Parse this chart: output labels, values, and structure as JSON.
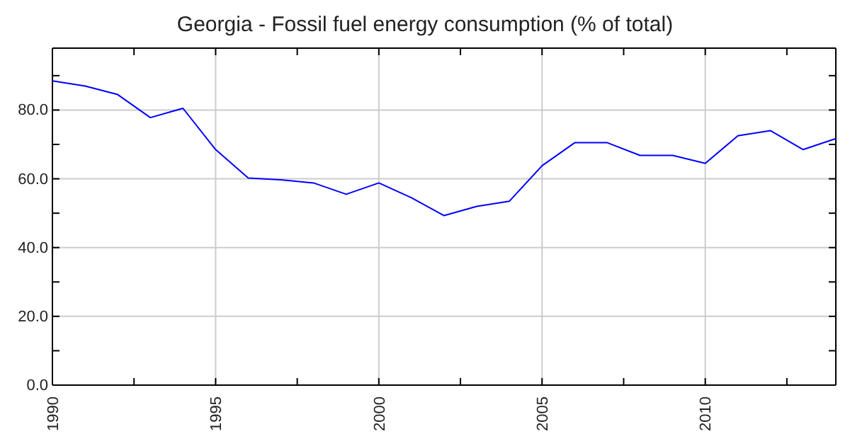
{
  "chart_data": {
    "type": "line",
    "title": "Georgia - Fossil fuel energy consumption (% of total)",
    "x": [
      1990,
      1991,
      1992,
      1993,
      1994,
      1995,
      1996,
      1997,
      1998,
      1999,
      2000,
      2001,
      2002,
      2003,
      2004,
      2005,
      2006,
      2007,
      2008,
      2009,
      2010,
      2011,
      2012,
      2013,
      2014
    ],
    "series": [
      {
        "color": "#0000ff",
        "values": [
          88.5,
          87,
          84.5,
          77.8,
          80.5,
          68.5,
          60.2,
          59.7,
          58.8,
          55.5,
          58.8,
          54.5,
          49.3,
          52,
          53.5,
          63.8,
          70.5,
          70.5,
          66.8,
          66.8,
          64.5,
          72.5,
          74,
          68.5,
          71.7
        ]
      }
    ],
    "xlim": [
      1990,
      2014
    ],
    "xticks": [
      1990,
      {
        "value": 1992.5,
        "label": null
      },
      1995,
      {
        "value": 1997.5,
        "label": null
      },
      2000,
      {
        "value": 2002.5,
        "label": null
      },
      2005,
      {
        "value": 2007.5,
        "label": null
      },
      2010,
      {
        "value": 2012.5,
        "label": null
      }
    ],
    "ylim": [
      0,
      98
    ],
    "yticks": [
      {
        "value": 0,
        "label": "0.0"
      },
      {
        "value": 10,
        "label": null
      },
      {
        "value": 20,
        "label": "20.0"
      },
      {
        "value": 30,
        "label": null
      },
      {
        "value": 40,
        "label": "40.0"
      },
      {
        "value": 50,
        "label": null
      },
      {
        "value": 60,
        "label": "60.0"
      },
      {
        "value": 70,
        "label": null
      },
      {
        "value": 80,
        "label": "80.0"
      },
      {
        "value": 90,
        "label": null
      }
    ],
    "grid": true,
    "marker": "none",
    "line_style": "solid"
  }
}
